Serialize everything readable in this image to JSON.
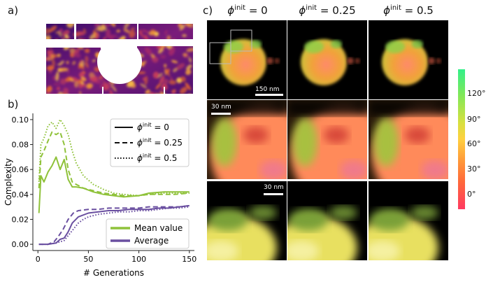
{
  "labels": {
    "a": "a)",
    "b": "b)",
    "c": "c)"
  },
  "columns": [
    {
      "phi": "ϕ",
      "sup": "init",
      "value": "= 0"
    },
    {
      "phi": "ϕ",
      "sup": "init",
      "value": "= 0.25"
    },
    {
      "phi": "ϕ",
      "sup": "init",
      "value": "= 0.5"
    }
  ],
  "scalebars": {
    "top": "150 nm",
    "middle": "30 nm",
    "bottom": "30 nm"
  },
  "colorbar": {
    "ticks": [
      "120°",
      "90°",
      "60°",
      "30°",
      "0°"
    ]
  },
  "chart_data": {
    "type": "line",
    "xlabel": "# Generations",
    "ylabel": "Complexity",
    "xlim": [
      -5,
      155
    ],
    "ylim": [
      -0.005,
      0.105
    ],
    "xticks": [
      "0",
      "50",
      "100",
      "150"
    ],
    "yticks": [
      "0.00",
      "0.02",
      "0.04",
      "0.06",
      "0.08",
      "0.10"
    ],
    "legend_style": [
      {
        "label_phi": "ϕ",
        "label_sup": "init",
        "label_value": "= 0",
        "dash": "solid"
      },
      {
        "label_phi": "ϕ",
        "label_sup": "init",
        "label_value": "= 0.25",
        "dash": "dashed"
      },
      {
        "label_phi": "ϕ",
        "label_sup": "init",
        "label_value": "= 0.5",
        "dash": "dotted"
      }
    ],
    "legend_color": [
      {
        "label": "Mean value",
        "color": "#8fc23a"
      },
      {
        "label": "Average",
        "color": "#6a4fa0"
      }
    ],
    "series": [
      {
        "group": "Mean value",
        "dash": "solid",
        "color": "#8fc23a",
        "x": [
          1,
          3,
          6,
          10,
          14,
          18,
          22,
          26,
          30,
          34,
          38,
          45,
          55,
          65,
          75,
          85,
          100,
          110,
          125,
          135,
          150
        ],
        "y": [
          0.025,
          0.055,
          0.05,
          0.058,
          0.063,
          0.07,
          0.06,
          0.068,
          0.052,
          0.046,
          0.046,
          0.045,
          0.042,
          0.04,
          0.039,
          0.038,
          0.039,
          0.041,
          0.042,
          0.042,
          0.042
        ]
      },
      {
        "group": "Mean value",
        "dash": "dashed",
        "color": "#8fc23a",
        "x": [
          1,
          3,
          6,
          10,
          14,
          18,
          22,
          26,
          30,
          34,
          38,
          45,
          55,
          65,
          75,
          85,
          100,
          110,
          125,
          135,
          150
        ],
        "y": [
          0.045,
          0.07,
          0.075,
          0.083,
          0.09,
          0.088,
          0.09,
          0.08,
          0.06,
          0.05,
          0.048,
          0.045,
          0.043,
          0.041,
          0.04,
          0.039,
          0.039,
          0.04,
          0.04,
          0.04,
          0.041
        ]
      },
      {
        "group": "Mean value",
        "dash": "dotted",
        "color": "#8fc23a",
        "x": [
          1,
          3,
          6,
          10,
          14,
          18,
          22,
          26,
          30,
          34,
          38,
          45,
          55,
          65,
          75,
          85,
          100,
          110,
          125,
          135,
          150
        ],
        "y": [
          0.05,
          0.08,
          0.085,
          0.095,
          0.098,
          0.093,
          0.1,
          0.095,
          0.088,
          0.075,
          0.065,
          0.055,
          0.048,
          0.044,
          0.041,
          0.04,
          0.039,
          0.04,
          0.041,
          0.041,
          0.041
        ]
      },
      {
        "group": "Average",
        "dash": "solid",
        "color": "#6a4fa0",
        "x": [
          1,
          10,
          18,
          22,
          26,
          30,
          34,
          40,
          50,
          60,
          70,
          80,
          90,
          100,
          110,
          120,
          130,
          140,
          150
        ],
        "y": [
          0.0,
          0.0,
          0.001,
          0.004,
          0.005,
          0.01,
          0.017,
          0.022,
          0.025,
          0.026,
          0.027,
          0.027,
          0.028,
          0.028,
          0.028,
          0.029,
          0.029,
          0.03,
          0.031
        ]
      },
      {
        "group": "Average",
        "dash": "dashed",
        "color": "#6a4fa0",
        "x": [
          1,
          10,
          16,
          20,
          25,
          30,
          35,
          40,
          50,
          60,
          70,
          80,
          90,
          100,
          110,
          120,
          130,
          140,
          150
        ],
        "y": [
          0.0,
          0.0,
          0.002,
          0.006,
          0.012,
          0.02,
          0.025,
          0.027,
          0.028,
          0.028,
          0.029,
          0.029,
          0.029,
          0.029,
          0.03,
          0.03,
          0.03,
          0.03,
          0.031
        ]
      },
      {
        "group": "Average",
        "dash": "dotted",
        "color": "#6a4fa0",
        "x": [
          1,
          10,
          18,
          22,
          26,
          30,
          35,
          40,
          45,
          50,
          60,
          70,
          80,
          90,
          100,
          110,
          120,
          130,
          140,
          150
        ],
        "y": [
          0.0,
          0.0,
          0.001,
          0.002,
          0.003,
          0.007,
          0.012,
          0.017,
          0.02,
          0.022,
          0.024,
          0.025,
          0.026,
          0.026,
          0.027,
          0.027,
          0.028,
          0.029,
          0.029,
          0.03
        ]
      }
    ]
  }
}
